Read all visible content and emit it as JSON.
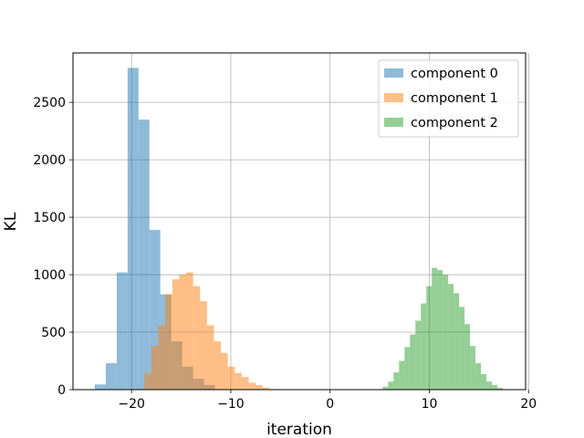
{
  "chart_data": {
    "type": "histogram",
    "title": "",
    "xlabel": "iteration",
    "ylabel": "KL",
    "xlim": [
      -25.9,
      19.7
    ],
    "ylim": [
      0,
      2930
    ],
    "xticks": [
      -20,
      -10,
      0,
      10,
      20
    ],
    "xtick_labels": [
      "−20",
      "−10",
      "0",
      "10",
      "20"
    ],
    "yticks": [
      0,
      500,
      1000,
      1500,
      2000,
      2500
    ],
    "ytick_labels": [
      "0",
      "500",
      "1000",
      "1500",
      "2000",
      "2500"
    ],
    "grid": true,
    "legend_position": "top-right",
    "alpha": 0.5,
    "series": [
      {
        "name": "component 0",
        "color": "#1f77b4",
        "bin_edges": [
          -23.7,
          -22.6,
          -21.5,
          -20.4,
          -19.3,
          -18.2,
          -17.1,
          -16.0,
          -14.9,
          -13.8,
          -12.7,
          -11.6
        ],
        "counts": [
          45,
          230,
          1020,
          2800,
          2350,
          1390,
          830,
          420,
          200,
          95,
          40
        ]
      },
      {
        "name": "component 1",
        "color": "#ff7f0e",
        "bin_edges": [
          -19.4,
          -18.7,
          -18.0,
          -17.3,
          -16.6,
          -15.9,
          -15.2,
          -14.5,
          -13.8,
          -13.1,
          -12.4,
          -11.7,
          -11.0,
          -10.3,
          -9.6,
          -8.9,
          -8.2,
          -7.5,
          -6.8,
          -6.1,
          -5.4
        ],
        "counts": [
          5,
          145,
          380,
          560,
          830,
          960,
          1000,
          1020,
          900,
          770,
          560,
          420,
          320,
          200,
          145,
          110,
          60,
          40,
          18,
          5
        ]
      },
      {
        "name": "component 2",
        "color": "#2ca02c",
        "bin_edges": [
          5.3,
          5.85,
          6.4,
          6.95,
          7.5,
          8.05,
          8.6,
          9.15,
          9.7,
          10.25,
          10.8,
          11.35,
          11.9,
          12.45,
          13.0,
          13.55,
          14.1,
          14.65,
          15.2,
          15.75,
          16.3,
          16.85,
          17.4
        ],
        "counts": [
          25,
          70,
          150,
          250,
          370,
          480,
          600,
          750,
          900,
          1060,
          1040,
          1000,
          920,
          840,
          720,
          570,
          380,
          230,
          135,
          70,
          40,
          15
        ]
      }
    ]
  }
}
